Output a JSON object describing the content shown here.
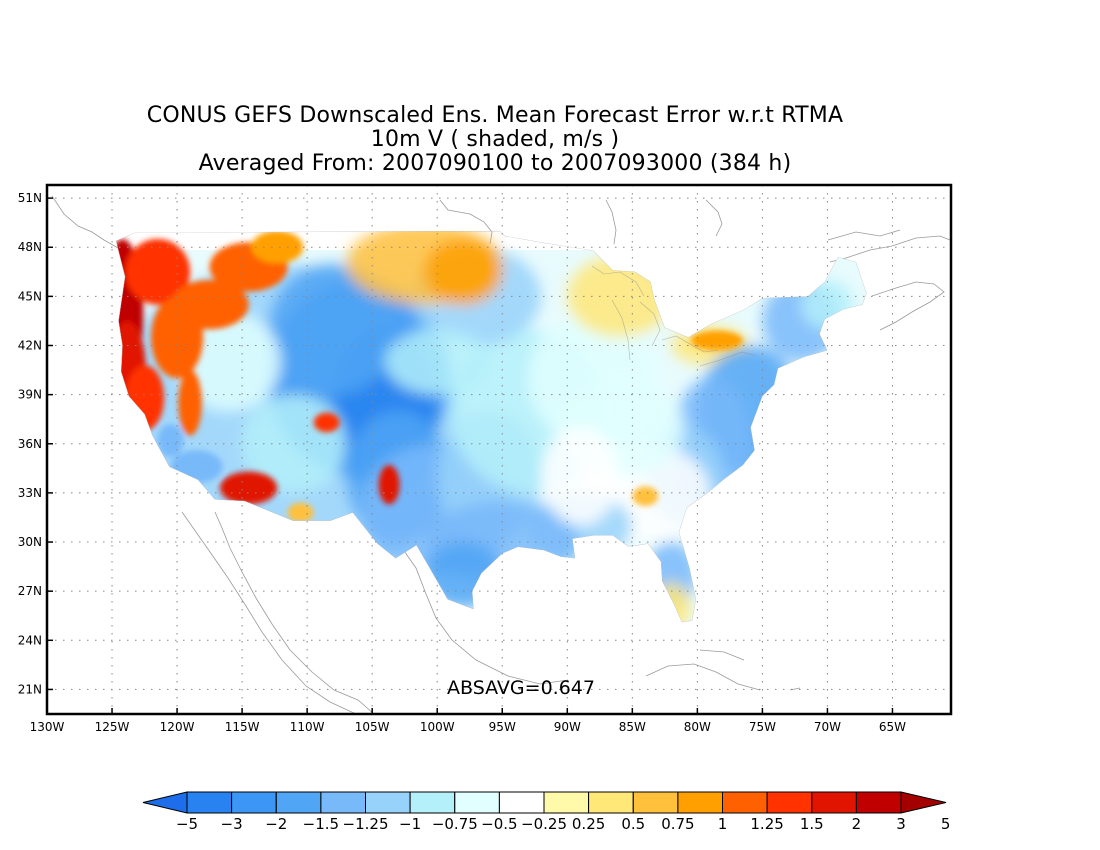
{
  "title": {
    "line1": "CONUS GEFS Downscaled Ens. Mean Forecast Error w.r.t RTMA",
    "line2": "10m V ( shaded, m/s )",
    "line3": "Averaged From: 2007090100 to 2007093000 (384 h)"
  },
  "annotation": "ABSAVG=0.647",
  "map": {
    "lon_range": [
      -130,
      -60.5
    ],
    "lat_range": [
      19.5,
      51.8
    ],
    "lat_ticks": [
      {
        "value": 51,
        "label": "51N"
      },
      {
        "value": 48,
        "label": "48N"
      },
      {
        "value": 45,
        "label": "45N"
      },
      {
        "value": 42,
        "label": "42N"
      },
      {
        "value": 39,
        "label": "39N"
      },
      {
        "value": 36,
        "label": "36N"
      },
      {
        "value": 33,
        "label": "33N"
      },
      {
        "value": 30,
        "label": "30N"
      },
      {
        "value": 27,
        "label": "27N"
      },
      {
        "value": 24,
        "label": "24N"
      },
      {
        "value": 21,
        "label": "21N"
      }
    ],
    "lon_ticks": [
      {
        "value": -130,
        "label": "130W"
      },
      {
        "value": -125,
        "label": "125W"
      },
      {
        "value": -120,
        "label": "120W"
      },
      {
        "value": -115,
        "label": "115W"
      },
      {
        "value": -110,
        "label": "110W"
      },
      {
        "value": -105,
        "label": "105W"
      },
      {
        "value": -100,
        "label": "100W"
      },
      {
        "value": -95,
        "label": "95W"
      },
      {
        "value": -90,
        "label": "90W"
      },
      {
        "value": -85,
        "label": "85W"
      },
      {
        "value": -80,
        "label": "80W"
      },
      {
        "value": -75,
        "label": "75W"
      },
      {
        "value": -70,
        "label": "70W"
      },
      {
        "value": -65,
        "label": "65W"
      }
    ],
    "grid": "dotted",
    "regions": [
      {
        "desc": "Pacific coast",
        "level": 16
      },
      {
        "desc": "Pacific Northwest interior",
        "level": 13
      },
      {
        "desc": "Great Basin",
        "level": 8
      },
      {
        "desc": "Rockies",
        "level": 3
      },
      {
        "desc": "Northern Plains",
        "level": 12
      },
      {
        "desc": "Great Plains",
        "level": 5
      },
      {
        "desc": "Great Lakes",
        "level": 10
      },
      {
        "desc": "Southeast",
        "level": 6
      },
      {
        "desc": "East coast",
        "level": 3
      },
      {
        "desc": "Desert Southwest",
        "level": 14
      }
    ]
  },
  "colorbar": {
    "colors": [
      "#1e6eeb",
      "#2882f0",
      "#3c96f5",
      "#50a5f5",
      "#78b9fa",
      "#96d2fa",
      "#b4f0fa",
      "#e1ffff",
      "#ffffff",
      "#fffaaa",
      "#ffe878",
      "#ffc03c",
      "#ffa000",
      "#ff6000",
      "#ff3200",
      "#e11400",
      "#c00000",
      "#a50000"
    ],
    "labels": [
      "−5",
      "−3",
      "−2",
      "−1.5",
      "−1.25",
      "−1",
      "−0.75",
      "−0.5",
      "−0.25",
      "0.25",
      "0.5",
      "0.75",
      "1",
      "1.25",
      "1.5",
      "2",
      "3",
      "5"
    ]
  }
}
